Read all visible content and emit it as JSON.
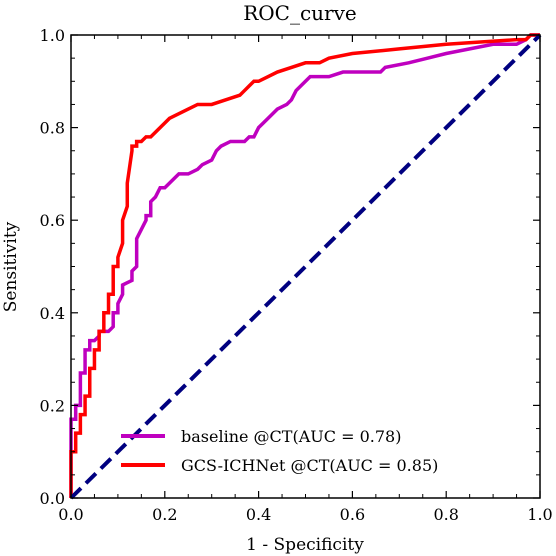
{
  "chart_data": {
    "type": "line",
    "title": "ROC_curve",
    "xlabel": "1 - Specificity",
    "ylabel": "Sensitivity",
    "xlim": [
      0.0,
      1.0
    ],
    "ylim": [
      0.0,
      1.0
    ],
    "xticks": [
      "0.0",
      "0.2",
      "0.4",
      "0.6",
      "0.8",
      "1.0"
    ],
    "yticks": [
      "0.0",
      "0.2",
      "0.4",
      "0.6",
      "0.8",
      "1.0"
    ],
    "grid": false,
    "legend_position": "lower-right",
    "series": [
      {
        "name": "baseline @CT(AUC = 0.78)",
        "color": "#bf00bf",
        "x": [
          0.0,
          0.0,
          0.01,
          0.01,
          0.02,
          0.02,
          0.03,
          0.03,
          0.04,
          0.04,
          0.05,
          0.06,
          0.06,
          0.08,
          0.09,
          0.09,
          0.1,
          0.1,
          0.11,
          0.11,
          0.13,
          0.13,
          0.14,
          0.14,
          0.16,
          0.16,
          0.17,
          0.17,
          0.18,
          0.19,
          0.2,
          0.21,
          0.22,
          0.23,
          0.25,
          0.27,
          0.28,
          0.3,
          0.31,
          0.32,
          0.34,
          0.35,
          0.37,
          0.38,
          0.39,
          0.4,
          0.41,
          0.42,
          0.43,
          0.44,
          0.46,
          0.47,
          0.48,
          0.5,
          0.51,
          0.54,
          0.55,
          0.58,
          0.66,
          0.67,
          0.72,
          0.76,
          0.8,
          0.85,
          0.9,
          0.95,
          0.97,
          0.98,
          1.0
        ],
        "y": [
          0.0,
          0.17,
          0.17,
          0.2,
          0.2,
          0.27,
          0.27,
          0.32,
          0.32,
          0.34,
          0.34,
          0.35,
          0.36,
          0.36,
          0.37,
          0.4,
          0.4,
          0.42,
          0.44,
          0.46,
          0.47,
          0.49,
          0.5,
          0.56,
          0.6,
          0.61,
          0.61,
          0.64,
          0.65,
          0.67,
          0.67,
          0.68,
          0.69,
          0.7,
          0.7,
          0.71,
          0.72,
          0.73,
          0.75,
          0.76,
          0.77,
          0.77,
          0.77,
          0.78,
          0.78,
          0.8,
          0.81,
          0.82,
          0.83,
          0.84,
          0.85,
          0.86,
          0.88,
          0.9,
          0.91,
          0.91,
          0.91,
          0.92,
          0.92,
          0.93,
          0.94,
          0.95,
          0.96,
          0.97,
          0.98,
          0.98,
          0.99,
          1.0,
          1.0
        ]
      },
      {
        "name": "GCS-ICHNet @CT(AUC = 0.85)",
        "color": "#ff0000",
        "x": [
          0.0,
          0.0,
          0.01,
          0.01,
          0.02,
          0.02,
          0.03,
          0.03,
          0.04,
          0.04,
          0.05,
          0.05,
          0.06,
          0.06,
          0.07,
          0.07,
          0.08,
          0.08,
          0.09,
          0.09,
          0.1,
          0.1,
          0.11,
          0.11,
          0.12,
          0.12,
          0.13,
          0.13,
          0.14,
          0.14,
          0.15,
          0.16,
          0.17,
          0.18,
          0.19,
          0.2,
          0.21,
          0.23,
          0.25,
          0.27,
          0.3,
          0.33,
          0.36,
          0.37,
          0.38,
          0.39,
          0.4,
          0.42,
          0.44,
          0.47,
          0.5,
          0.53,
          0.55,
          0.6,
          0.7,
          0.8,
          0.95,
          0.97,
          0.98,
          1.0
        ],
        "y": [
          0.0,
          0.1,
          0.1,
          0.14,
          0.14,
          0.18,
          0.18,
          0.22,
          0.22,
          0.28,
          0.28,
          0.32,
          0.32,
          0.36,
          0.36,
          0.4,
          0.4,
          0.44,
          0.44,
          0.5,
          0.5,
          0.52,
          0.55,
          0.6,
          0.63,
          0.68,
          0.75,
          0.76,
          0.76,
          0.77,
          0.77,
          0.78,
          0.78,
          0.79,
          0.8,
          0.81,
          0.82,
          0.83,
          0.84,
          0.85,
          0.85,
          0.86,
          0.87,
          0.88,
          0.89,
          0.9,
          0.9,
          0.91,
          0.92,
          0.93,
          0.94,
          0.94,
          0.95,
          0.96,
          0.97,
          0.98,
          0.99,
          0.99,
          1.0,
          1.0
        ]
      },
      {
        "name": "",
        "color": "#000080",
        "dashed": true,
        "x": [
          0.0,
          1.0
        ],
        "y": [
          0.0,
          1.0
        ]
      }
    ]
  }
}
